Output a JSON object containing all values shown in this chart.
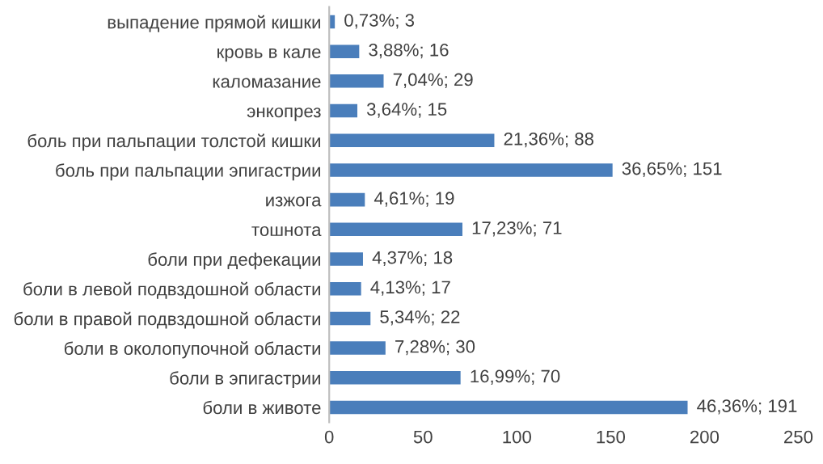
{
  "chart_data": {
    "type": "bar",
    "orientation": "horizontal",
    "categories": [
      "выпадение прямой кишки",
      "кровь в кале",
      "каломазание",
      "энкопрез",
      "боль при пальпации толстой кишки",
      "боль при пальпации эпигастрии",
      "изжога",
      "тошнота",
      "боли при дефекации",
      "боли в левой подвздошной области",
      "боли в правой подвздошной области",
      "боли в околопупочной области",
      "боли в эпигастрии",
      "боли в животе"
    ],
    "values": [
      3,
      16,
      29,
      15,
      88,
      151,
      19,
      71,
      18,
      17,
      22,
      30,
      70,
      191
    ],
    "value_labels": [
      "0,73%; 3",
      "3,88%; 16",
      "7,04%; 29",
      "3,64%; 15",
      "21,36%; 88",
      "36,65%; 151",
      "4,61%; 19",
      "17,23%; 71",
      "4,37%; 18",
      "4,13%; 17",
      "5,34%; 22",
      "7,28%; 30",
      "16,99%; 70",
      "46,36%; 191"
    ],
    "color": "#4a7ebb",
    "xlim": [
      0,
      250
    ],
    "xticks": [
      0,
      50,
      100,
      150,
      200,
      250
    ],
    "grid": false,
    "legend": false
  }
}
